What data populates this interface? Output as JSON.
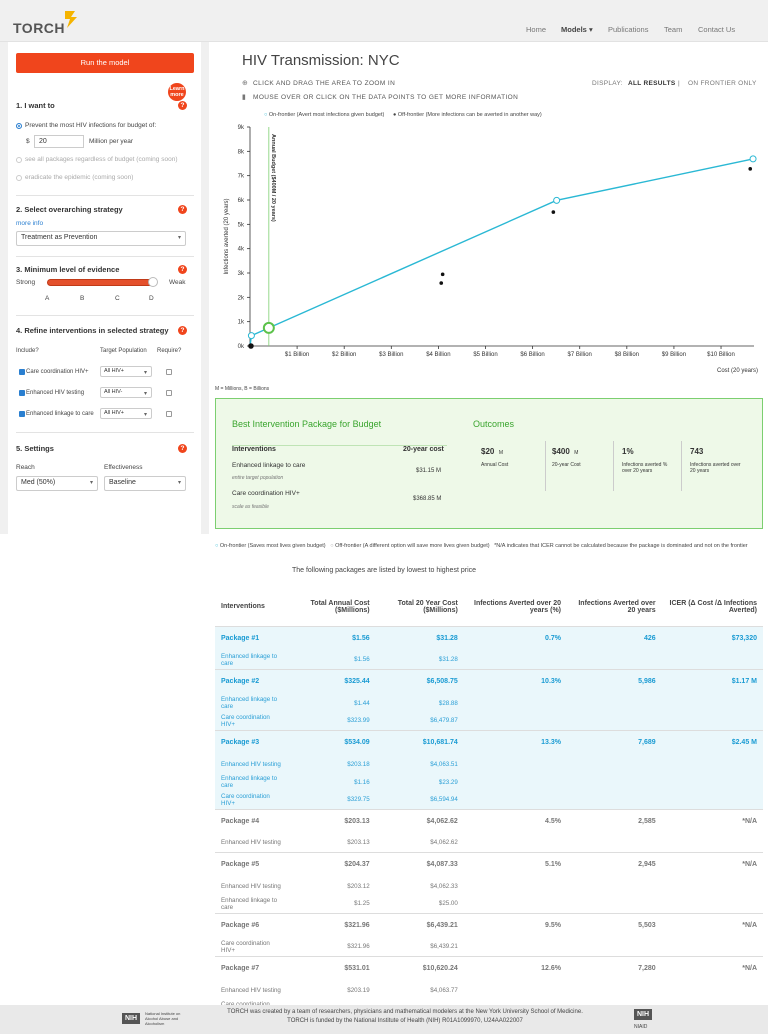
{
  "brand": {
    "logo": "TORCH"
  },
  "nav": [
    "Home",
    "Models",
    "Publications",
    "Team",
    "Contact Us"
  ],
  "sidebar": {
    "run": "Run the model",
    "learn": "Learn more",
    "s1": "1. I want to",
    "opt1": "Prevent the most HIV infections for budget of:",
    "dollar": "$",
    "budget": "20",
    "unit": "Million per year",
    "opt2": "see all packages regardless of budget (coming soon)",
    "opt3": "eradicate the epidemic (coming soon)",
    "s2": "2. Select overarching strategy",
    "more": "more info",
    "strategy": "Treatment as Prevention",
    "s3": "3. Minimum level of evidence",
    "strong": "Strong",
    "weak": "Weak",
    "grades": [
      "A",
      "B",
      "C",
      "D"
    ],
    "s4": "4. Refine interventions in selected strategy",
    "col_inc": "Include?",
    "col_tp": "Target Population",
    "col_req": "Require?",
    "rows": [
      {
        "name": "Care coordination HIV+",
        "pop": "All HIV+"
      },
      {
        "name": "Enhanced HIV testing",
        "pop": "All HIV-"
      },
      {
        "name": "Enhanced linkage to care",
        "pop": "All HIV+"
      }
    ],
    "s5": "5. Settings",
    "reach_l": "Reach",
    "eff_l": "Effectiveness",
    "reach": "Med (50%)",
    "eff": "Baseline"
  },
  "main": {
    "title": "HIV Transmission: NYC",
    "hint1": "CLICK AND DRAG THE AREA TO ZOOM IN",
    "hint2": "MOUSE OVER OR CLICK ON THE DATA POINTS TO GET MORE INFORMATION",
    "display": "DISPLAY:",
    "all": "ALL RESULTS",
    "sep": "|",
    "frontier": "ON FRONTIER ONLY",
    "mb": "M = Millions, B = Billions"
  },
  "chart_data": {
    "type": "scatter",
    "legend": [
      "On-frontier (Avert most infections given budget)",
      "Off-frontier (More infections can be averted in another way)"
    ],
    "xlabel": "Cost (20 years)",
    "ylabel": "Infections averted (20 years)",
    "xticks": [
      "$1 Billion",
      "$2 Billion",
      "$3 Billion",
      "$4 Billion",
      "$5 Billion",
      "$6 Billion",
      "$7 Billion",
      "$8 Billion",
      "$9 Billion",
      "$10 Billion"
    ],
    "yticks": [
      "0k",
      "1k",
      "2k",
      "3k",
      "4k",
      "5k",
      "6k",
      "7k",
      "8k",
      "9k"
    ],
    "xlim": [
      0,
      10.7
    ],
    "ylim": [
      0,
      9000
    ],
    "budget_label": "Annual Budget ($400M / 20 years)",
    "budget_x": 0.4,
    "frontier": [
      {
        "x": 0.03,
        "y": 426
      },
      {
        "x": 6.51,
        "y": 5986
      },
      {
        "x": 10.68,
        "y": 7689
      }
    ],
    "selected": {
      "x": 0.4,
      "y": 743
    },
    "off_frontier": [
      {
        "x": 0.02,
        "y": 0
      },
      {
        "x": 4.06,
        "y": 2585
      },
      {
        "x": 4.09,
        "y": 2945
      },
      {
        "x": 6.44,
        "y": 5503
      },
      {
        "x": 10.62,
        "y": 7280
      }
    ]
  },
  "best": {
    "title": "Best Intervention Package for Budget",
    "h_int": "Interventions",
    "h_cost": "20-year cost",
    "items": [
      {
        "name": "Enhanced linkage to care",
        "note": "entire target population",
        "cost": "$31.15 M"
      },
      {
        "name": "Care coordination HIV+",
        "note": "scale as feasible",
        "cost": "$368.85 M"
      }
    ],
    "outcomes": "Outcomes",
    "stats": [
      {
        "v": "$20",
        "u": "M",
        "l": "Annual Cost"
      },
      {
        "v": "$400",
        "u": "M",
        "l": "20-year Cost"
      },
      {
        "v": "1%",
        "u": "",
        "l": "Infections averted % over 20 years"
      },
      {
        "v": "743",
        "u": "",
        "l": "Infections averted over 20 years"
      }
    ]
  },
  "legend2": {
    "on": "On-frontier (Saves most lives given budget)",
    "off": "Off-frontier (A different option will save more lives given budget)",
    "na": "*N/A indicates that ICER cannot be calculated because the package is dominated and not on the frontier"
  },
  "list_title": "The following packages are listed by lowest to highest price",
  "table": {
    "headers": [
      "Interventions",
      "Total Annual Cost ($Millions)",
      "Total 20 Year Cost ($Millions)",
      "Infections Averted over 20 years (%)",
      "Infections Averted over 20 years",
      "ICER (Δ Cost /Δ Infections Averted)"
    ],
    "packages": [
      {
        "on": true,
        "row": [
          "Package #1",
          "$1.56",
          "$31.28",
          "0.7%",
          "426",
          "$73,320"
        ],
        "subs": [
          [
            "Enhanced linkage to care",
            "$1.56",
            "$31.28"
          ]
        ]
      },
      {
        "on": true,
        "row": [
          "Package #2",
          "$325.44",
          "$6,508.75",
          "10.3%",
          "5,986",
          "$1.17 M"
        ],
        "subs": [
          [
            "Enhanced linkage to care",
            "$1.44",
            "$28.88"
          ],
          [
            "Care coordination HIV+",
            "$323.99",
            "$6,479.87"
          ]
        ]
      },
      {
        "on": true,
        "row": [
          "Package #3",
          "$534.09",
          "$10,681.74",
          "13.3%",
          "7,689",
          "$2.45 M"
        ],
        "subs": [
          [
            "Enhanced HIV testing",
            "$203.18",
            "$4,063.51"
          ],
          [
            "Enhanced linkage to care",
            "$1.16",
            "$23.29"
          ],
          [
            "Care coordination HIV+",
            "$329.75",
            "$6,594.94"
          ]
        ]
      },
      {
        "on": false,
        "row": [
          "Package #4",
          "$203.13",
          "$4,062.62",
          "4.5%",
          "2,585",
          "*N/A"
        ],
        "subs": [
          [
            "Enhanced HIV testing",
            "$203.13",
            "$4,062.62"
          ]
        ]
      },
      {
        "on": false,
        "row": [
          "Package #5",
          "$204.37",
          "$4,087.33",
          "5.1%",
          "2,945",
          "*N/A"
        ],
        "subs": [
          [
            "Enhanced HIV testing",
            "$203.12",
            "$4,062.33"
          ],
          [
            "Enhanced linkage to care",
            "$1.25",
            "$25.00"
          ]
        ]
      },
      {
        "on": false,
        "row": [
          "Package #6",
          "$321.96",
          "$6,439.21",
          "9.5%",
          "5,503",
          "*N/A"
        ],
        "subs": [
          [
            "Care coordination HIV+",
            "$321.96",
            "$6,439.21"
          ]
        ]
      },
      {
        "on": false,
        "row": [
          "Package #7",
          "$531.01",
          "$10,620.24",
          "12.6%",
          "7,280",
          "*N/A"
        ],
        "subs": [
          [
            "Enhanced HIV testing",
            "$203.19",
            "$4,063.77"
          ],
          [
            "Care coordination HIV+",
            "$327.82",
            "$6,556.47"
          ]
        ]
      }
    ]
  },
  "footer": {
    "nih": "NIH",
    "niaaa": "National Institute on Alcohol Abuse and Alcoholism",
    "l1": "TORCH was created by a team of researchers, physicians and mathematical modelers at the New York University School of Medicine.",
    "l2": "TORCH is funded by the National Institute of Health (NIH) R01A1099970, U24AA022007",
    "niaid": "NIAID"
  }
}
